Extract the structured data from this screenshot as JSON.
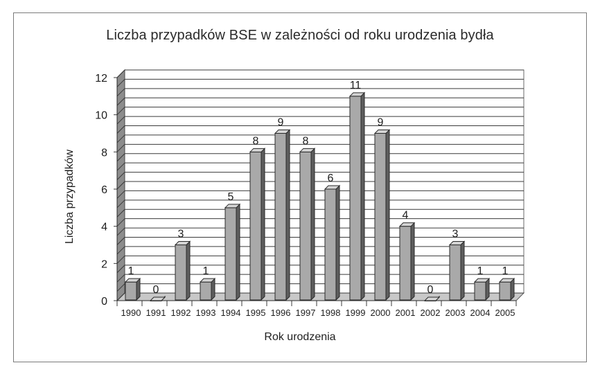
{
  "chart_data": {
    "type": "bar",
    "title": "Liczba przypadków BSE w zależności od roku urodzenia bydła",
    "xlabel": "Rok urodzenia",
    "ylabel": "Liczba przypadków",
    "categories": [
      "1990",
      "1991",
      "1992",
      "1993",
      "1994",
      "1995",
      "1996",
      "1997",
      "1998",
      "1999",
      "2000",
      "2001",
      "2002",
      "2003",
      "2004",
      "2005"
    ],
    "values": [
      1,
      0,
      3,
      1,
      5,
      8,
      9,
      8,
      6,
      11,
      9,
      4,
      0,
      3,
      1,
      1
    ],
    "ylim": [
      0,
      12
    ],
    "yticks": [
      "0",
      "2",
      "4",
      "6",
      "8",
      "10",
      "12"
    ],
    "minor_grid_step": 0.5,
    "grid": true,
    "legend": "none",
    "style": "3d-columns",
    "colors": {
      "bar_front": "#a9a9a9",
      "bar_side": "#5e5e5e",
      "bar_top": "#d4d4d4",
      "grid": "#3a3a3a",
      "wall": "#ffffff"
    }
  }
}
